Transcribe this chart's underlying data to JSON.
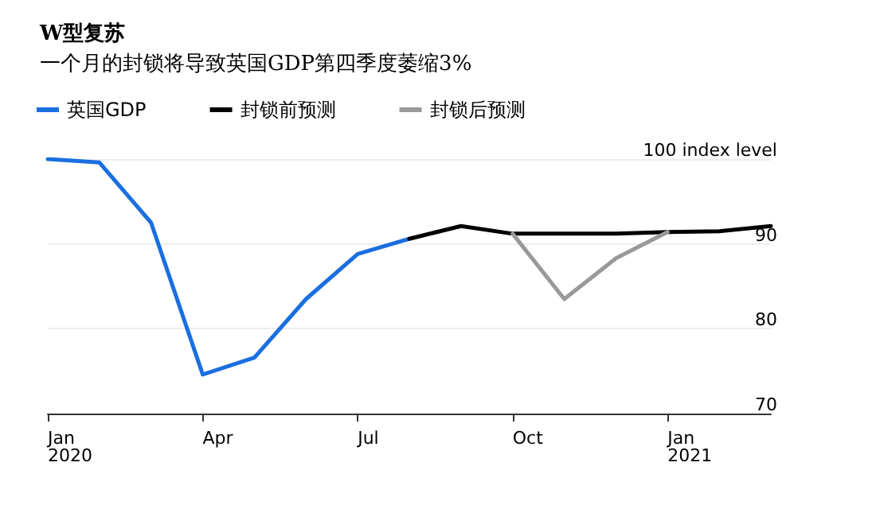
{
  "chart_data": {
    "type": "line",
    "title": "W型复苏",
    "subtitle": "一个月的封锁将导致英国GDP第四季度萎缩3%",
    "categories": [
      "Jan\n2020",
      null,
      null,
      "Apr",
      null,
      null,
      "Jul",
      null,
      null,
      "Oct",
      null,
      null,
      "Jan\n2021",
      null,
      null
    ],
    "series": [
      {
        "name": "英国GDP",
        "color": "#1a6fe0",
        "values": [
          100,
          99.6,
          92.5,
          74.6,
          76.6,
          83.5,
          88.8,
          90.6,
          null,
          null,
          null,
          null,
          null,
          null,
          null
        ]
      },
      {
        "name": "封锁前预测",
        "color": "#000000",
        "values": [
          null,
          null,
          null,
          null,
          null,
          null,
          null,
          90.6,
          92.1,
          91.2,
          91.2,
          91.2,
          91.4,
          91.5,
          92.1
        ]
      },
      {
        "name": "封锁后预测",
        "color": "#999999",
        "values": [
          null,
          null,
          null,
          null,
          null,
          null,
          null,
          null,
          null,
          91.2,
          83.5,
          88.3,
          91.4,
          null,
          null
        ]
      }
    ],
    "ylim": [
      70,
      100
    ],
    "yticks": [
      {
        "value": 100,
        "label": "100 index level"
      },
      90,
      80,
      70
    ],
    "grid": "y",
    "legend": "top left",
    "marker": "none",
    "line_style": "solid"
  }
}
